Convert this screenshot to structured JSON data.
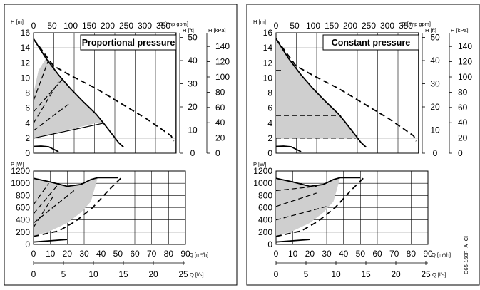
{
  "chart_data": [
    {
      "type": "line",
      "mode": "Proportional pressure",
      "title": "Proportional pressure",
      "top_plot": {
        "units": {
          "left": "H [m]",
          "flow_top": "Q [Imp gpm]",
          "h_ft": "H [ft]",
          "h_kpa": "H [kPa]"
        },
        "x_range_m3h": [
          0,
          57
        ],
        "y_range_m": [
          0,
          16
        ],
        "y_ticks_m": [
          "0",
          "2",
          "4",
          "6",
          "8",
          "10",
          "12",
          "14",
          "16"
        ],
        "x_ticks_imp_gpm": [
          "0",
          "50",
          "100",
          "150",
          "200",
          "250",
          "300",
          "350"
        ],
        "ft_ticks": [
          "0",
          "10",
          "20",
          "30",
          "40",
          "50"
        ],
        "kpa_ticks": [
          "0",
          "20",
          "40",
          "60",
          "80",
          "100",
          "120",
          "140"
        ],
        "series": [
          {
            "style": "solid",
            "points": [
              [
                0,
                15.2
              ],
              [
                5,
                12.6
              ],
              [
                10,
                10.4
              ],
              [
                15,
                8.5
              ],
              [
                20,
                6.8
              ],
              [
                25,
                5.2
              ],
              [
                28,
                4.0
              ],
              [
                31,
                2.7
              ],
              [
                34,
                1.4
              ],
              [
                36,
                0.8
              ]
            ]
          },
          {
            "style": "dashed",
            "points": [
              [
                0,
                15.2
              ],
              [
                8,
                11.6
              ],
              [
                15,
                10.3
              ],
              [
                25,
                8.6
              ],
              [
                35,
                6.6
              ],
              [
                45,
                4.6
              ],
              [
                52,
                3.0
              ],
              [
                55,
                2.3
              ],
              [
                56,
                1.6
              ]
            ]
          },
          {
            "style": "solid",
            "points": [
              [
                0,
                0.9
              ],
              [
                3,
                0.95
              ],
              [
                6,
                0.85
              ],
              [
                10,
                0.2
              ]
            ]
          }
        ],
        "shaded_region": [
          [
            0,
            2
          ],
          [
            0,
            8
          ],
          [
            2,
            11
          ],
          [
            5,
            12.6
          ],
          [
            10,
            10.4
          ],
          [
            15,
            8.5
          ],
          [
            20,
            6.8
          ],
          [
            25,
            5.2
          ],
          [
            28,
            4
          ],
          [
            25,
            4
          ],
          [
            0,
            2
          ]
        ],
        "control_lines": [
          {
            "style": "dashed",
            "points": [
              [
                0,
                4
              ],
              [
                10,
                9.5
              ]
            ]
          },
          {
            "style": "dashed",
            "points": [
              [
                0,
                5.5
              ],
              [
                12,
                10
              ]
            ]
          },
          {
            "style": "dashed",
            "points": [
              [
                0,
                7
              ],
              [
                6,
                12.4
              ]
            ]
          },
          {
            "style": "dashed",
            "points": [
              [
                0,
                3
              ],
              [
                14,
                6.5
              ]
            ]
          },
          {
            "style": "solid",
            "points": [
              [
                0,
                2
              ],
              [
                28,
                4
              ]
            ]
          }
        ]
      },
      "bottom_plot": {
        "units": {
          "left": "P [W]",
          "flow_m3h": "Q [m³/h]",
          "flow_ls": "Q [l/s]"
        },
        "x_range_m3h": [
          0,
          90
        ],
        "y_range_w": [
          0,
          1200
        ],
        "y_ticks_w": [
          "0",
          "200",
          "400",
          "600",
          "800",
          "1000",
          "1200"
        ],
        "x_ticks_m3h": [
          "0",
          "10",
          "20",
          "30",
          "40",
          "50",
          "60",
          "70",
          "80",
          "90"
        ],
        "x_ticks_ls": [
          "0",
          "5",
          "10",
          "15",
          "20",
          "25"
        ],
        "series": [
          {
            "style": "solid",
            "points": [
              [
                0,
                1080
              ],
              [
                10,
                1020
              ],
              [
                20,
                950
              ],
              [
                28,
                980
              ],
              [
                34,
                1060
              ],
              [
                38,
                1090
              ],
              [
                50,
                1090
              ]
            ]
          },
          {
            "style": "dashed",
            "points": [
              [
                0,
                130
              ],
              [
                15,
                220
              ],
              [
                25,
                380
              ],
              [
                35,
                600
              ],
              [
                45,
                900
              ],
              [
                52,
                1090
              ]
            ]
          },
          {
            "style": "solid",
            "points": [
              [
                0,
                40
              ],
              [
                10,
                60
              ],
              [
                20,
                80
              ]
            ]
          }
        ],
        "shaded_region": [
          [
            0,
            130
          ],
          [
            0,
            1080
          ],
          [
            10,
            1020
          ],
          [
            20,
            950
          ],
          [
            28,
            980
          ],
          [
            34,
            1060
          ],
          [
            38,
            1090
          ],
          [
            34,
            700
          ],
          [
            28,
            520
          ],
          [
            20,
            350
          ],
          [
            10,
            220
          ],
          [
            0,
            130
          ]
        ],
        "control_lines": [
          {
            "style": "dashed",
            "points": [
              [
                0,
                280
              ],
              [
                12,
                800
              ]
            ]
          },
          {
            "style": "dashed",
            "points": [
              [
                0,
                500
              ],
              [
                14,
                960
              ]
            ]
          },
          {
            "style": "dashed",
            "points": [
              [
                0,
                650
              ],
              [
                9,
                1000
              ]
            ]
          },
          {
            "style": "dashed",
            "points": [
              [
                0,
                350
              ],
              [
                24,
                880
              ]
            ]
          }
        ]
      }
    },
    {
      "type": "line",
      "mode": "Constant pressure",
      "title": "Constant pressure",
      "top_plot": {
        "units": {
          "left": "H [m]",
          "flow_top": "Q [Imp gpm]",
          "h_ft": "H [ft]",
          "h_kpa": "H [kPa]"
        },
        "x_range_m3h": [
          0,
          57
        ],
        "y_range_m": [
          0,
          16
        ],
        "y_ticks_m": [
          "0",
          "2",
          "4",
          "6",
          "8",
          "10",
          "12",
          "14",
          "16"
        ],
        "x_ticks_imp_gpm": [
          "0",
          "50",
          "100",
          "150",
          "200",
          "250",
          "300",
          "350"
        ],
        "ft_ticks": [
          "0",
          "10",
          "20",
          "30",
          "40",
          "50"
        ],
        "kpa_ticks": [
          "0",
          "20",
          "40",
          "60",
          "80",
          "100",
          "120",
          "140"
        ],
        "series": [
          {
            "style": "solid",
            "points": [
              [
                0,
                15.2
              ],
              [
                5,
                12.6
              ],
              [
                10,
                10.4
              ],
              [
                15,
                8.5
              ],
              [
                20,
                6.8
              ],
              [
                25,
                5.2
              ],
              [
                28,
                4.0
              ],
              [
                31,
                2.7
              ],
              [
                34,
                1.4
              ],
              [
                36,
                0.8
              ]
            ]
          },
          {
            "style": "dashed",
            "points": [
              [
                0,
                15.2
              ],
              [
                8,
                11.6
              ],
              [
                15,
                10.3
              ],
              [
                25,
                8.6
              ],
              [
                35,
                6.6
              ],
              [
                45,
                4.6
              ],
              [
                52,
                3.0
              ],
              [
                55,
                2.3
              ],
              [
                56,
                1.6
              ]
            ]
          },
          {
            "style": "solid",
            "points": [
              [
                0,
                0.9
              ],
              [
                3,
                0.95
              ],
              [
                6,
                0.85
              ],
              [
                10,
                0.2
              ]
            ]
          }
        ],
        "shaded_region": [
          [
            0,
            2
          ],
          [
            0,
            15.2
          ],
          [
            5,
            12.6
          ],
          [
            10,
            10.4
          ],
          [
            15,
            8.5
          ],
          [
            20,
            6.8
          ],
          [
            25,
            5.2
          ],
          [
            28,
            4
          ],
          [
            31,
            2.7
          ],
          [
            32,
            2
          ],
          [
            0,
            2
          ]
        ],
        "control_lines": [
          {
            "style": "dashed",
            "points": [
              [
                0,
                11
              ],
              [
                2,
                11
              ]
            ]
          },
          {
            "style": "dashed",
            "points": [
              [
                0,
                5
              ],
              [
                26,
                5
              ]
            ]
          },
          {
            "style": "dashed",
            "points": [
              [
                0,
                2
              ],
              [
                32,
                2
              ]
            ]
          }
        ]
      },
      "bottom_plot": {
        "units": {
          "left": "P [W]",
          "flow_m3h": "Q [m³/h]",
          "flow_ls": "Q [l/s]"
        },
        "x_range_m3h": [
          0,
          90
        ],
        "y_range_w": [
          0,
          1200
        ],
        "y_ticks_w": [
          "0",
          "200",
          "400",
          "600",
          "800",
          "1000",
          "1200"
        ],
        "x_ticks_m3h": [
          "0",
          "10",
          "20",
          "30",
          "40",
          "50",
          "60",
          "70",
          "80",
          "90"
        ],
        "x_ticks_ls": [
          "0",
          "5",
          "10",
          "15",
          "20",
          "25"
        ],
        "series": [
          {
            "style": "solid",
            "points": [
              [
                0,
                1080
              ],
              [
                10,
                1020
              ],
              [
                20,
                950
              ],
              [
                28,
                980
              ],
              [
                34,
                1060
              ],
              [
                38,
                1090
              ],
              [
                50,
                1090
              ]
            ]
          },
          {
            "style": "dashed",
            "points": [
              [
                0,
                130
              ],
              [
                15,
                220
              ],
              [
                25,
                380
              ],
              [
                35,
                600
              ],
              [
                45,
                900
              ],
              [
                52,
                1090
              ]
            ]
          },
          {
            "style": "solid",
            "points": [
              [
                0,
                40
              ],
              [
                10,
                60
              ],
              [
                20,
                80
              ]
            ]
          }
        ],
        "shaded_region": [
          [
            0,
            130
          ],
          [
            0,
            1080
          ],
          [
            10,
            1020
          ],
          [
            20,
            950
          ],
          [
            28,
            980
          ],
          [
            34,
            1060
          ],
          [
            38,
            1090
          ],
          [
            34,
            700
          ],
          [
            28,
            520
          ],
          [
            20,
            350
          ],
          [
            10,
            220
          ],
          [
            0,
            130
          ]
        ],
        "control_lines": [
          {
            "style": "dashed",
            "points": [
              [
                0,
                880
              ],
              [
                24,
                950
              ]
            ]
          },
          {
            "style": "dashed",
            "points": [
              [
                0,
                620
              ],
              [
                24,
                840
              ]
            ]
          },
          {
            "style": "dashed",
            "points": [
              [
                0,
                400
              ],
              [
                30,
                620
              ]
            ]
          }
        ]
      }
    }
  ],
  "side_caption": "D65-150F_A_CH"
}
